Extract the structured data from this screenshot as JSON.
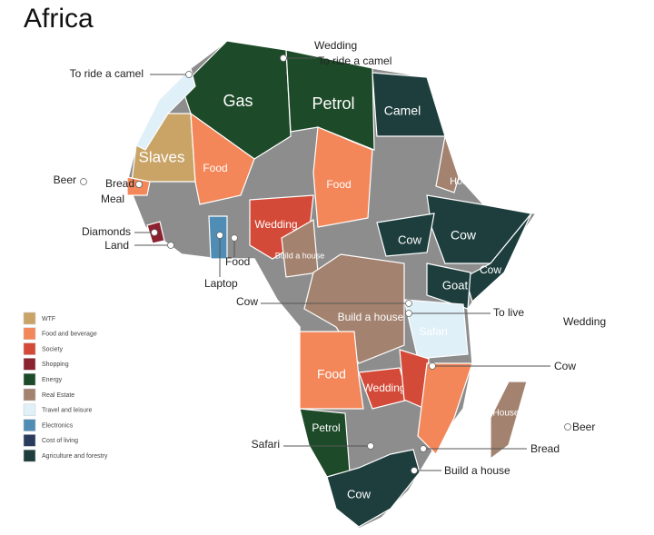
{
  "title": "Africa",
  "legend": [
    {
      "label": "WTF",
      "color": "#c9a466"
    },
    {
      "label": "Food and beverage",
      "color": "#f3875a"
    },
    {
      "label": "Society",
      "color": "#d44a38"
    },
    {
      "label": "Shopping",
      "color": "#8b2230"
    },
    {
      "label": "Energy",
      "color": "#1d4a29"
    },
    {
      "label": "Real Estate",
      "color": "#a3826f"
    },
    {
      "label": "Travel and leisure",
      "color": "#dff0f8"
    },
    {
      "label": "Electronics",
      "color": "#4f8db5"
    },
    {
      "label": "Cost of living",
      "color": "#2a3b5c"
    },
    {
      "label": "Agriculture and forestry",
      "color": "#1e3e3e"
    }
  ],
  "regions": [
    {
      "label": "Gas",
      "color": "#1d4a29"
    },
    {
      "label": "Petrol",
      "color": "#1d4a29"
    },
    {
      "label": "Camel",
      "color": "#1e3e3e"
    },
    {
      "label": "Slaves",
      "color": "#c9a466"
    },
    {
      "label": "Food",
      "color": "#f3875a"
    },
    {
      "label": "Food",
      "color": "#f3875a"
    },
    {
      "label": "Wedding",
      "color": "#d44a38"
    },
    {
      "label": "Build a house",
      "color": "#a3826f"
    },
    {
      "label": "House",
      "color": "#a3826f"
    },
    {
      "label": "Cow",
      "color": "#1e3e3e"
    },
    {
      "label": "Cow",
      "color": "#1e3e3e"
    },
    {
      "label": "Cow",
      "color": "#1e3e3e"
    },
    {
      "label": "Goat",
      "color": "#1e3e3e"
    },
    {
      "label": "Build a house",
      "color": "#a3826f"
    },
    {
      "label": "Safari",
      "color": "#dff0f8"
    },
    {
      "label": "Food",
      "color": "#f3875a"
    },
    {
      "label": "Wedding",
      "color": "#d44a38"
    },
    {
      "label": "House",
      "color": "#a3826f"
    },
    {
      "label": "Petrol",
      "color": "#1d4a29"
    },
    {
      "label": "Cow",
      "color": "#1e3e3e"
    }
  ],
  "callouts": [
    {
      "label": "To ride a camel"
    },
    {
      "label": "Wedding"
    },
    {
      "label": "To ride a camel"
    },
    {
      "label": "Beer"
    },
    {
      "label": "Bread"
    },
    {
      "label": "Meal"
    },
    {
      "label": "Diamonds"
    },
    {
      "label": "Land"
    },
    {
      "label": "Food"
    },
    {
      "label": "Laptop"
    },
    {
      "label": "Cow"
    },
    {
      "label": "To live"
    },
    {
      "label": "Wedding"
    },
    {
      "label": "Cow"
    },
    {
      "label": "Beer"
    },
    {
      "label": "Bread"
    },
    {
      "label": "Safari"
    },
    {
      "label": "Build a house"
    }
  ]
}
